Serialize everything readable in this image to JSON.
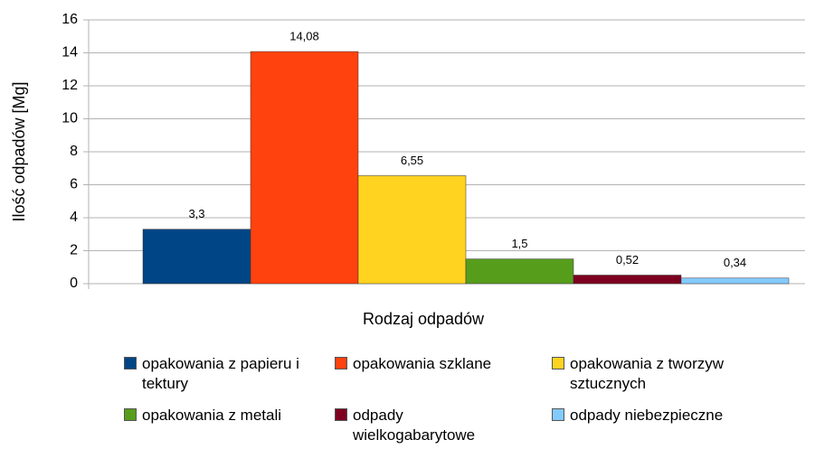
{
  "chart_data": {
    "type": "bar",
    "y_label": "Ilość odpadów [Mg]",
    "x_label": "Rodzaj odpadów",
    "categories": [
      null
    ],
    "series": [
      {
        "name": "opakowania z papieru i tektury",
        "color": "#004586",
        "values": [
          3.3
        ],
        "value_labels": [
          "3,3"
        ]
      },
      {
        "name": "opakowania szklane",
        "color": "#ff420e",
        "values": [
          14.08
        ],
        "value_labels": [
          "14,08"
        ]
      },
      {
        "name": "opakowania z tworzyw sztucznych",
        "color": "#ffd320",
        "values": [
          6.55
        ],
        "value_labels": [
          "6,55"
        ]
      },
      {
        "name": "opakowania z metali",
        "color": "#579d1c",
        "values": [
          1.5
        ],
        "value_labels": [
          "1,5"
        ]
      },
      {
        "name": "odpady wielkogabarytowe",
        "color": "#7e0021",
        "values": [
          0.52
        ],
        "value_labels": [
          "0,52"
        ]
      },
      {
        "name": "odpady niebezpieczne",
        "color": "#83caff",
        "values": [
          0.34
        ],
        "value_labels": [
          "0,34"
        ]
      }
    ],
    "ylim": [
      0,
      16
    ],
    "yticks": [
      0,
      2,
      4,
      6,
      8,
      10,
      12,
      14,
      16
    ],
    "grid": true,
    "legend": "bottom"
  }
}
